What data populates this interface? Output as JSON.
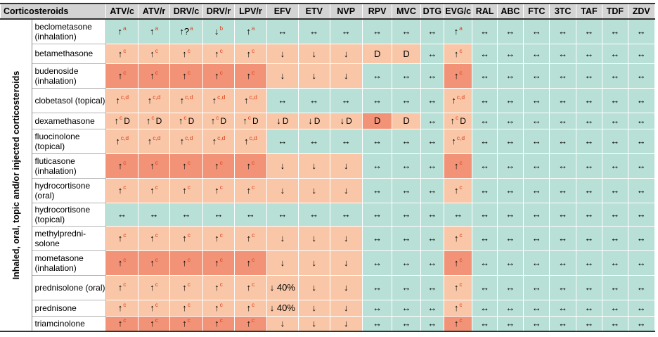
{
  "header": {
    "title": "Corticosteroids",
    "columns": [
      "ATV/c",
      "ATV/r",
      "DRV/c",
      "DRV/r",
      "LPV/r",
      "EFV",
      "ETV",
      "NVP",
      "RPV",
      "MVC",
      "DTG",
      "EVG/c",
      "RAL",
      "ABC",
      "FTC",
      "3TC",
      "TAF",
      "TDF",
      "ZDV"
    ]
  },
  "side_label": "Inhaled, oral, topic and/or injected corticosteroids",
  "legend_colors": {
    "no_interaction": "#b9e0d6",
    "potential_interaction": "#f9c7a7",
    "do_not_coadminister": "#f29276"
  },
  "rows": [
    {
      "drug": "beclometasone (inhalation)",
      "cells": [
        {
          "s": "↑",
          "sup": "a",
          "c": "g"
        },
        {
          "s": "↑",
          "sup": "a",
          "c": "g"
        },
        {
          "s": "↑?",
          "sup": "a",
          "c": "g"
        },
        {
          "s": "↓",
          "sup": "b",
          "c": "g"
        },
        {
          "s": "↑",
          "sup": "a",
          "c": "g"
        },
        {
          "s": "↔",
          "c": "g"
        },
        {
          "s": "↔",
          "c": "g"
        },
        {
          "s": "↔",
          "c": "g"
        },
        {
          "s": "↔",
          "c": "g"
        },
        {
          "s": "↔",
          "c": "g"
        },
        {
          "s": "↔",
          "c": "g"
        },
        {
          "s": "↑",
          "sup": "a",
          "c": "g"
        },
        {
          "s": "↔",
          "c": "g"
        },
        {
          "s": "↔",
          "c": "g"
        },
        {
          "s": "↔",
          "c": "g"
        },
        {
          "s": "↔",
          "c": "g"
        },
        {
          "s": "↔",
          "c": "g"
        },
        {
          "s": "↔",
          "c": "g"
        },
        {
          "s": "↔",
          "c": "g"
        }
      ]
    },
    {
      "drug": "betamethasone",
      "cells": [
        {
          "s": "↑",
          "sup": "c",
          "c": "p"
        },
        {
          "s": "↑",
          "sup": "c",
          "c": "p"
        },
        {
          "s": "↑",
          "sup": "c",
          "c": "p"
        },
        {
          "s": "↑",
          "sup": "c",
          "c": "p"
        },
        {
          "s": "↑",
          "sup": "c",
          "c": "p"
        },
        {
          "s": "↓",
          "c": "p"
        },
        {
          "s": "↓",
          "c": "p"
        },
        {
          "s": "↓",
          "c": "p"
        },
        {
          "s": "D",
          "c": "p"
        },
        {
          "s": "D",
          "c": "p"
        },
        {
          "s": "↔",
          "c": "g"
        },
        {
          "s": "↑",
          "sup": "c",
          "c": "p"
        },
        {
          "s": "↔",
          "c": "g"
        },
        {
          "s": "↔",
          "c": "g"
        },
        {
          "s": "↔",
          "c": "g"
        },
        {
          "s": "↔",
          "c": "g"
        },
        {
          "s": "↔",
          "c": "g"
        },
        {
          "s": "↔",
          "c": "g"
        },
        {
          "s": "↔",
          "c": "g"
        }
      ]
    },
    {
      "drug": "budenoside (inhalation)",
      "cells": [
        {
          "s": "↑",
          "sup": "c",
          "c": "r"
        },
        {
          "s": "↑",
          "sup": "c",
          "c": "r"
        },
        {
          "s": "↑",
          "sup": "c",
          "c": "r"
        },
        {
          "s": "↑",
          "sup": "c",
          "c": "r"
        },
        {
          "s": "↑",
          "sup": "c",
          "c": "r"
        },
        {
          "s": "↓",
          "c": "p"
        },
        {
          "s": "↓",
          "c": "p"
        },
        {
          "s": "↓",
          "c": "p"
        },
        {
          "s": "↔",
          "c": "g"
        },
        {
          "s": "↔",
          "c": "g"
        },
        {
          "s": "↔",
          "c": "g"
        },
        {
          "s": "↑",
          "sup": "c",
          "c": "r"
        },
        {
          "s": "↔",
          "c": "g"
        },
        {
          "s": "↔",
          "c": "g"
        },
        {
          "s": "↔",
          "c": "g"
        },
        {
          "s": "↔",
          "c": "g"
        },
        {
          "s": "↔",
          "c": "g"
        },
        {
          "s": "↔",
          "c": "g"
        },
        {
          "s": "↔",
          "c": "g"
        }
      ]
    },
    {
      "drug": "clobetasol (topical)",
      "cells": [
        {
          "s": "↑",
          "sup": "c,d",
          "c": "p"
        },
        {
          "s": "↑",
          "sup": "c,d",
          "c": "p"
        },
        {
          "s": "↑",
          "sup": "c,d",
          "c": "p"
        },
        {
          "s": "↑",
          "sup": "c,d",
          "c": "p"
        },
        {
          "s": "↑",
          "sup": "c,d",
          "c": "p"
        },
        {
          "s": "↔",
          "c": "g"
        },
        {
          "s": "↔",
          "c": "g"
        },
        {
          "s": "↔",
          "c": "g"
        },
        {
          "s": "↔",
          "c": "g"
        },
        {
          "s": "↔",
          "c": "g"
        },
        {
          "s": "↔",
          "c": "g"
        },
        {
          "s": "↑",
          "sup": "c,d",
          "c": "p"
        },
        {
          "s": "↔",
          "c": "g"
        },
        {
          "s": "↔",
          "c": "g"
        },
        {
          "s": "↔",
          "c": "g"
        },
        {
          "s": "↔",
          "c": "g"
        },
        {
          "s": "↔",
          "c": "g"
        },
        {
          "s": "↔",
          "c": "g"
        },
        {
          "s": "↔",
          "c": "g"
        }
      ]
    },
    {
      "drug": "dexamethasone",
      "cells": [
        {
          "s": "↑",
          "sup": "c",
          "x": "D",
          "c": "p"
        },
        {
          "s": "↑",
          "sup": "c",
          "x": "D",
          "c": "p"
        },
        {
          "s": "↑",
          "sup": "c",
          "x": "D",
          "c": "p"
        },
        {
          "s": "↑",
          "sup": "c",
          "x": "D",
          "c": "p"
        },
        {
          "s": "↑",
          "sup": "c",
          "x": "D",
          "c": "p"
        },
        {
          "s": "↓",
          "x": "D",
          "c": "p"
        },
        {
          "s": "↓",
          "x": "D",
          "c": "p"
        },
        {
          "s": "↓",
          "x": "D",
          "c": "p"
        },
        {
          "s": "D",
          "c": "r"
        },
        {
          "s": "D",
          "c": "p"
        },
        {
          "s": "↔",
          "c": "g"
        },
        {
          "s": "↑",
          "sup": "c",
          "x": "D",
          "c": "p"
        },
        {
          "s": "↔",
          "c": "g"
        },
        {
          "s": "↔",
          "c": "g"
        },
        {
          "s": "↔",
          "c": "g"
        },
        {
          "s": "↔",
          "c": "g"
        },
        {
          "s": "↔",
          "c": "g"
        },
        {
          "s": "↔",
          "c": "g"
        },
        {
          "s": "↔",
          "c": "g"
        }
      ]
    },
    {
      "drug": "fluocinolone (topical)",
      "cells": [
        {
          "s": "↑",
          "sup": "c,d",
          "c": "p"
        },
        {
          "s": "↑",
          "sup": "c,d",
          "c": "p"
        },
        {
          "s": "↑",
          "sup": "c,d",
          "c": "p"
        },
        {
          "s": "↑",
          "sup": "c,d",
          "c": "p"
        },
        {
          "s": "↑",
          "sup": "c,d",
          "c": "p"
        },
        {
          "s": "↔",
          "c": "g"
        },
        {
          "s": "↔",
          "c": "g"
        },
        {
          "s": "↔",
          "c": "g"
        },
        {
          "s": "↔",
          "c": "g"
        },
        {
          "s": "↔",
          "c": "g"
        },
        {
          "s": "↔",
          "c": "g"
        },
        {
          "s": "↑",
          "sup": "c,d",
          "c": "p"
        },
        {
          "s": "↔",
          "c": "g"
        },
        {
          "s": "↔",
          "c": "g"
        },
        {
          "s": "↔",
          "c": "g"
        },
        {
          "s": "↔",
          "c": "g"
        },
        {
          "s": "↔",
          "c": "g"
        },
        {
          "s": "↔",
          "c": "g"
        },
        {
          "s": "↔",
          "c": "g"
        }
      ]
    },
    {
      "drug": "fluticasone (inhalation)",
      "cells": [
        {
          "s": "↑",
          "sup": "c",
          "c": "r"
        },
        {
          "s": "↑",
          "sup": "c",
          "c": "r"
        },
        {
          "s": "↑",
          "sup": "c",
          "c": "r"
        },
        {
          "s": "↑",
          "sup": "c",
          "c": "r"
        },
        {
          "s": "↑",
          "sup": "c",
          "c": "r"
        },
        {
          "s": "↓",
          "c": "p"
        },
        {
          "s": "↓",
          "c": "p"
        },
        {
          "s": "↓",
          "c": "p"
        },
        {
          "s": "↔",
          "c": "g"
        },
        {
          "s": "↔",
          "c": "g"
        },
        {
          "s": "↔",
          "c": "g"
        },
        {
          "s": "↑",
          "sup": "c",
          "c": "r"
        },
        {
          "s": "↔",
          "c": "g"
        },
        {
          "s": "↔",
          "c": "g"
        },
        {
          "s": "↔",
          "c": "g"
        },
        {
          "s": "↔",
          "c": "g"
        },
        {
          "s": "↔",
          "c": "g"
        },
        {
          "s": "↔",
          "c": "g"
        },
        {
          "s": "↔",
          "c": "g"
        }
      ]
    },
    {
      "drug": "hydrocortisone (oral)",
      "cells": [
        {
          "s": "↑",
          "sup": "c",
          "c": "p"
        },
        {
          "s": "↑",
          "sup": "c",
          "c": "p"
        },
        {
          "s": "↑",
          "sup": "c",
          "c": "p"
        },
        {
          "s": "↑",
          "sup": "c",
          "c": "p"
        },
        {
          "s": "↑",
          "sup": "c",
          "c": "p"
        },
        {
          "s": "↓",
          "c": "p"
        },
        {
          "s": "↓",
          "c": "p"
        },
        {
          "s": "↓",
          "c": "p"
        },
        {
          "s": "↔",
          "c": "g"
        },
        {
          "s": "↔",
          "c": "g"
        },
        {
          "s": "↔",
          "c": "g"
        },
        {
          "s": "↑",
          "sup": "c",
          "c": "p"
        },
        {
          "s": "↔",
          "c": "g"
        },
        {
          "s": "↔",
          "c": "g"
        },
        {
          "s": "↔",
          "c": "g"
        },
        {
          "s": "↔",
          "c": "g"
        },
        {
          "s": "↔",
          "c": "g"
        },
        {
          "s": "↔",
          "c": "g"
        },
        {
          "s": "↔",
          "c": "g"
        }
      ]
    },
    {
      "drug": "hydrocortisone (topical)",
      "cells": [
        {
          "s": "↔",
          "c": "g"
        },
        {
          "s": "↔",
          "c": "g"
        },
        {
          "s": "↔",
          "c": "g"
        },
        {
          "s": "↔",
          "c": "g"
        },
        {
          "s": "↔",
          "c": "g"
        },
        {
          "s": "↔",
          "c": "g"
        },
        {
          "s": "↔",
          "c": "g"
        },
        {
          "s": "↔",
          "c": "g"
        },
        {
          "s": "↔",
          "c": "g"
        },
        {
          "s": "↔",
          "c": "g"
        },
        {
          "s": "↔",
          "c": "g"
        },
        {
          "s": "↔",
          "c": "g"
        },
        {
          "s": "↔",
          "c": "g"
        },
        {
          "s": "↔",
          "c": "g"
        },
        {
          "s": "↔",
          "c": "g"
        },
        {
          "s": "↔",
          "c": "g"
        },
        {
          "s": "↔",
          "c": "g"
        },
        {
          "s": "↔",
          "c": "g"
        },
        {
          "s": "↔",
          "c": "g"
        }
      ]
    },
    {
      "drug": "methylpredni-solone",
      "cells": [
        {
          "s": "↑",
          "sup": "c",
          "c": "p"
        },
        {
          "s": "↑",
          "sup": "c",
          "c": "p"
        },
        {
          "s": "↑",
          "sup": "c",
          "c": "p"
        },
        {
          "s": "↑",
          "sup": "c",
          "c": "p"
        },
        {
          "s": "↑",
          "sup": "c",
          "c": "p"
        },
        {
          "s": "↓",
          "c": "p"
        },
        {
          "s": "↓",
          "c": "p"
        },
        {
          "s": "↓",
          "c": "p"
        },
        {
          "s": "↔",
          "c": "g"
        },
        {
          "s": "↔",
          "c": "g"
        },
        {
          "s": "↔",
          "c": "g"
        },
        {
          "s": "↑",
          "sup": "c",
          "c": "p"
        },
        {
          "s": "↔",
          "c": "g"
        },
        {
          "s": "↔",
          "c": "g"
        },
        {
          "s": "↔",
          "c": "g"
        },
        {
          "s": "↔",
          "c": "g"
        },
        {
          "s": "↔",
          "c": "g"
        },
        {
          "s": "↔",
          "c": "g"
        },
        {
          "s": "↔",
          "c": "g"
        }
      ]
    },
    {
      "drug": "mometasone (inhalation)",
      "cells": [
        {
          "s": "↑",
          "sup": "c",
          "c": "r"
        },
        {
          "s": "↑",
          "sup": "c",
          "c": "r"
        },
        {
          "s": "↑",
          "sup": "c",
          "c": "r"
        },
        {
          "s": "↑",
          "sup": "c",
          "c": "r"
        },
        {
          "s": "↑",
          "sup": "c",
          "c": "r"
        },
        {
          "s": "↓",
          "c": "p"
        },
        {
          "s": "↓",
          "c": "p"
        },
        {
          "s": "↓",
          "c": "p"
        },
        {
          "s": "↔",
          "c": "g"
        },
        {
          "s": "↔",
          "c": "g"
        },
        {
          "s": "↔",
          "c": "g"
        },
        {
          "s": "↑",
          "sup": "c",
          "c": "r"
        },
        {
          "s": "↔",
          "c": "g"
        },
        {
          "s": "↔",
          "c": "g"
        },
        {
          "s": "↔",
          "c": "g"
        },
        {
          "s": "↔",
          "c": "g"
        },
        {
          "s": "↔",
          "c": "g"
        },
        {
          "s": "↔",
          "c": "g"
        },
        {
          "s": "↔",
          "c": "g"
        }
      ]
    },
    {
      "drug": "prednisolone (oral)",
      "cells": [
        {
          "s": "↑",
          "sup": "c",
          "c": "p"
        },
        {
          "s": "↑",
          "sup": "c",
          "c": "p"
        },
        {
          "s": "↑",
          "sup": "c",
          "c": "p"
        },
        {
          "s": "↑",
          "sup": "c",
          "c": "p"
        },
        {
          "s": "↑",
          "sup": "c",
          "c": "p"
        },
        {
          "s": "↓ 40%",
          "c": "p"
        },
        {
          "s": "↓",
          "c": "p"
        },
        {
          "s": "↓",
          "c": "p"
        },
        {
          "s": "↔",
          "c": "g"
        },
        {
          "s": "↔",
          "c": "g"
        },
        {
          "s": "↔",
          "c": "g"
        },
        {
          "s": "↑",
          "sup": "c",
          "c": "p"
        },
        {
          "s": "↔",
          "c": "g"
        },
        {
          "s": "↔",
          "c": "g"
        },
        {
          "s": "↔",
          "c": "g"
        },
        {
          "s": "↔",
          "c": "g"
        },
        {
          "s": "↔",
          "c": "g"
        },
        {
          "s": "↔",
          "c": "g"
        },
        {
          "s": "↔",
          "c": "g"
        }
      ]
    },
    {
      "drug": "prednisone",
      "cells": [
        {
          "s": "↑",
          "sup": "c",
          "c": "p"
        },
        {
          "s": "↑",
          "sup": "c",
          "c": "p"
        },
        {
          "s": "↑",
          "sup": "c",
          "c": "p"
        },
        {
          "s": "↑",
          "sup": "c",
          "c": "p"
        },
        {
          "s": "↑",
          "sup": "c",
          "c": "p"
        },
        {
          "s": "↓ 40%",
          "c": "p"
        },
        {
          "s": "↓",
          "c": "p"
        },
        {
          "s": "↓",
          "c": "p"
        },
        {
          "s": "↔",
          "c": "g"
        },
        {
          "s": "↔",
          "c": "g"
        },
        {
          "s": "↔",
          "c": "g"
        },
        {
          "s": "↑",
          "sup": "c",
          "c": "p"
        },
        {
          "s": "↔",
          "c": "g"
        },
        {
          "s": "↔",
          "c": "g"
        },
        {
          "s": "↔",
          "c": "g"
        },
        {
          "s": "↔",
          "c": "g"
        },
        {
          "s": "↔",
          "c": "g"
        },
        {
          "s": "↔",
          "c": "g"
        },
        {
          "s": "↔",
          "c": "g"
        }
      ]
    },
    {
      "drug": "triamcinolone",
      "cells": [
        {
          "s": "↑",
          "sup": "c",
          "c": "r"
        },
        {
          "s": "↑",
          "sup": "c",
          "c": "r"
        },
        {
          "s": "↑",
          "sup": "c",
          "c": "r"
        },
        {
          "s": "↑",
          "sup": "c",
          "c": "r"
        },
        {
          "s": "↑",
          "sup": "c",
          "c": "r"
        },
        {
          "s": "↓",
          "c": "p"
        },
        {
          "s": "↓",
          "c": "p"
        },
        {
          "s": "↓",
          "c": "p"
        },
        {
          "s": "↔",
          "c": "g"
        },
        {
          "s": "↔",
          "c": "g"
        },
        {
          "s": "↔",
          "c": "g"
        },
        {
          "s": "↑",
          "sup": "c",
          "c": "r"
        },
        {
          "s": "↔",
          "c": "g"
        },
        {
          "s": "↔",
          "c": "g"
        },
        {
          "s": "↔",
          "c": "g"
        },
        {
          "s": "↔",
          "c": "g"
        },
        {
          "s": "↔",
          "c": "g"
        },
        {
          "s": "↔",
          "c": "g"
        },
        {
          "s": "↔",
          "c": "g"
        }
      ]
    }
  ]
}
